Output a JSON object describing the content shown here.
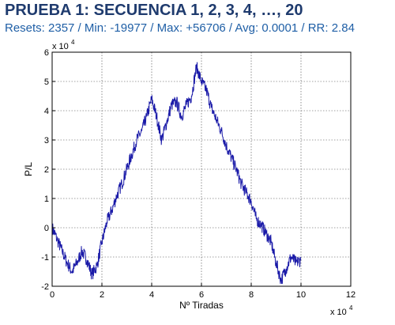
{
  "header": {
    "title": "PRUEBA 1: SECUENCIA 1, 2, 3, 4, …, 20",
    "subtitle": "Resets: 2357 / Min: -19977 / Max: +56706 / Avg: 0.0001 / RR: 2.84"
  },
  "chart_data": {
    "type": "line",
    "xlabel": "Nº Tiradas",
    "ylabel": "P/L",
    "xlim": [
      0,
      120000
    ],
    "ylim": [
      -20000,
      60000
    ],
    "x_ticks": [
      "0",
      "2",
      "4",
      "6",
      "8",
      "10",
      "12"
    ],
    "y_ticks": [
      "-2",
      "-1",
      "0",
      "1",
      "2",
      "3",
      "4",
      "5",
      "6"
    ],
    "x_exponent": "x 10",
    "x_exponent_power": "4",
    "y_exponent": "x 10",
    "y_exponent_power": "4",
    "grid": true,
    "line_color": "#1a1aa8",
    "series": [
      {
        "x": [
          0,
          2000,
          4000,
          6000,
          8000,
          10000,
          12000,
          14000,
          16000,
          18000,
          20000,
          22000,
          24000,
          26000,
          28000,
          30000,
          32000,
          34000,
          36000,
          38000,
          40000,
          42000,
          44000,
          46000,
          48000,
          50000,
          52000,
          54000,
          56000,
          58000,
          60000,
          62000,
          64000,
          66000,
          68000,
          70000,
          72000,
          74000,
          76000,
          78000,
          80000,
          82000,
          84000,
          86000,
          88000,
          90000,
          92000,
          94000,
          96000,
          98000,
          100000
        ],
        "y": [
          0,
          -4000,
          -8000,
          -12000,
          -15000,
          -12000,
          -8000,
          -11000,
          -16000,
          -13000,
          -5000,
          2000,
          6000,
          11000,
          15000,
          20000,
          25000,
          30000,
          33000,
          38000,
          44000,
          38000,
          30000,
          36000,
          42000,
          43000,
          38000,
          42000,
          45000,
          55000,
          50000,
          47000,
          41000,
          37000,
          33000,
          28000,
          24000,
          20000,
          15000,
          12000,
          9000,
          3000,
          1000,
          -2000,
          -5000,
          -12000,
          -18000,
          -14000,
          -10000,
          -12000,
          -11000
        ]
      }
    ]
  }
}
